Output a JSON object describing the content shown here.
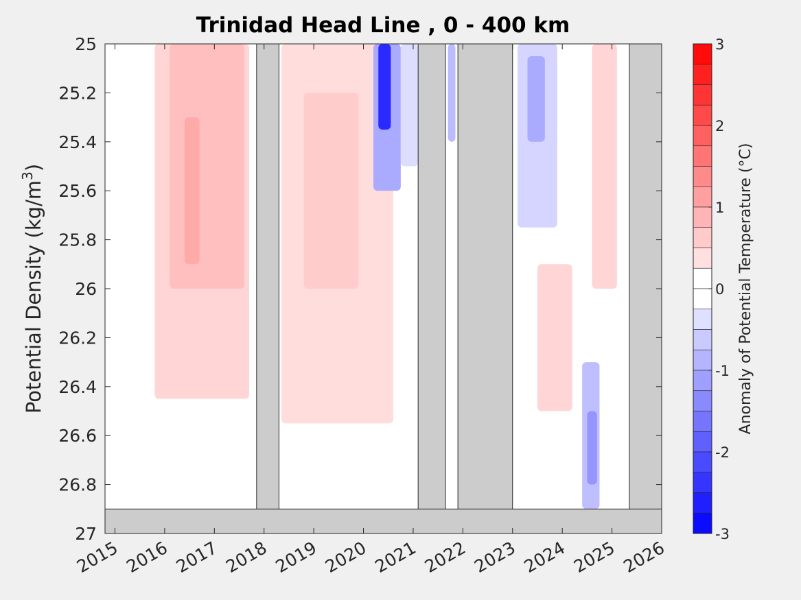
{
  "chart_data": {
    "type": "heatmap",
    "title": "Trinidad Head Line , 0 - 400 km",
    "ylabel_main": "Potential Density (kg/m",
    "ylabel_sup": "3",
    "ylabel_close": ")",
    "colorbar_label": "Anomaly of Potential Temperature (°C)",
    "xlim": [
      2014.8,
      2026.0
    ],
    "ylim": [
      25.0,
      27.0
    ],
    "y_reversed": true,
    "x_ticks": [
      {
        "value": 2015,
        "label": "2015"
      },
      {
        "value": 2016,
        "label": "2016"
      },
      {
        "value": 2017,
        "label": "2017"
      },
      {
        "value": 2018,
        "label": "2018"
      },
      {
        "value": 2019,
        "label": "2019"
      },
      {
        "value": 2020,
        "label": "2020"
      },
      {
        "value": 2021,
        "label": "2021"
      },
      {
        "value": 2022,
        "label": "2022"
      },
      {
        "value": 2023,
        "label": "2023"
      },
      {
        "value": 2024,
        "label": "2024"
      },
      {
        "value": 2025,
        "label": "2025"
      },
      {
        "value": 2026,
        "label": "2026"
      }
    ],
    "y_ticks": [
      {
        "value": 25.0,
        "label": "25"
      },
      {
        "value": 25.2,
        "label": "25.2"
      },
      {
        "value": 25.4,
        "label": "25.4"
      },
      {
        "value": 25.6,
        "label": "25.6"
      },
      {
        "value": 25.8,
        "label": "25.8"
      },
      {
        "value": 26.0,
        "label": "26"
      },
      {
        "value": 26.2,
        "label": "26.2"
      },
      {
        "value": 26.4,
        "label": "26.4"
      },
      {
        "value": 26.6,
        "label": "26.6"
      },
      {
        "value": 26.8,
        "label": "26.8"
      },
      {
        "value": 27.0,
        "label": "27"
      }
    ],
    "colorbar": {
      "range": [
        -3,
        3
      ],
      "step": 0.25,
      "ticks": [
        {
          "value": 3,
          "label": "3"
        },
        {
          "value": 2,
          "label": "2"
        },
        {
          "value": 1,
          "label": "1"
        },
        {
          "value": 0,
          "label": "0"
        },
        {
          "value": -1,
          "label": "-1"
        },
        {
          "value": -2,
          "label": "-2"
        },
        {
          "value": -3,
          "label": "-3"
        }
      ]
    },
    "no_data_gaps": [
      {
        "x": [
          2017.85,
          2018.3
        ],
        "y": [
          25.0,
          27.0
        ]
      },
      {
        "x": [
          2021.1,
          2021.65
        ],
        "y": [
          25.0,
          27.0
        ]
      },
      {
        "x": [
          2021.9,
          2023.0
        ],
        "y": [
          25.0,
          27.0
        ]
      },
      {
        "x": [
          2025.35,
          2026.0
        ],
        "y": [
          25.0,
          27.0
        ]
      },
      {
        "x": [
          2014.8,
          2026.0
        ],
        "y": [
          26.9,
          27.0
        ]
      }
    ],
    "anomaly_patches": [
      {
        "x": [
          2015.8,
          2017.7
        ],
        "y": [
          25.0,
          26.45
        ],
        "value": 0.5
      },
      {
        "x": [
          2016.1,
          2017.6
        ],
        "y": [
          25.0,
          26.0
        ],
        "value": 0.75
      },
      {
        "x": [
          2016.4,
          2016.7
        ],
        "y": [
          25.3,
          25.9
        ],
        "value": 1.0
      },
      {
        "x": [
          2017.0,
          2017.4
        ],
        "y": [
          25.05,
          25.5
        ],
        "value": 0.75
      },
      {
        "x": [
          2018.35,
          2020.6
        ],
        "y": [
          25.0,
          26.55
        ],
        "value": 0.4
      },
      {
        "x": [
          2018.8,
          2019.9
        ],
        "y": [
          25.2,
          26.0
        ],
        "value": 0.6
      },
      {
        "x": [
          2020.2,
          2020.75
        ],
        "y": [
          25.0,
          25.6
        ],
        "value": -1.0
      },
      {
        "x": [
          2020.3,
          2020.55
        ],
        "y": [
          25.0,
          25.35
        ],
        "value": -2.5
      },
      {
        "x": [
          2020.75,
          2021.1
        ],
        "y": [
          25.0,
          25.5
        ],
        "value": -0.4
      },
      {
        "x": [
          2021.7,
          2021.85
        ],
        "y": [
          25.0,
          25.4
        ],
        "value": -0.8
      },
      {
        "x": [
          2023.1,
          2023.9
        ],
        "y": [
          25.0,
          25.75
        ],
        "value": -0.5
      },
      {
        "x": [
          2023.3,
          2023.65
        ],
        "y": [
          25.05,
          25.4
        ],
        "value": -1.0
      },
      {
        "x": [
          2023.5,
          2024.2
        ],
        "y": [
          25.9,
          26.5
        ],
        "value": 0.5
      },
      {
        "x": [
          2024.4,
          2024.75
        ],
        "y": [
          26.3,
          26.9
        ],
        "value": -0.75
      },
      {
        "x": [
          2024.5,
          2024.7
        ],
        "y": [
          26.5,
          26.8
        ],
        "value": -1.25
      },
      {
        "x": [
          2024.6,
          2025.1
        ],
        "y": [
          25.0,
          26.0
        ],
        "value": 0.5
      }
    ]
  }
}
